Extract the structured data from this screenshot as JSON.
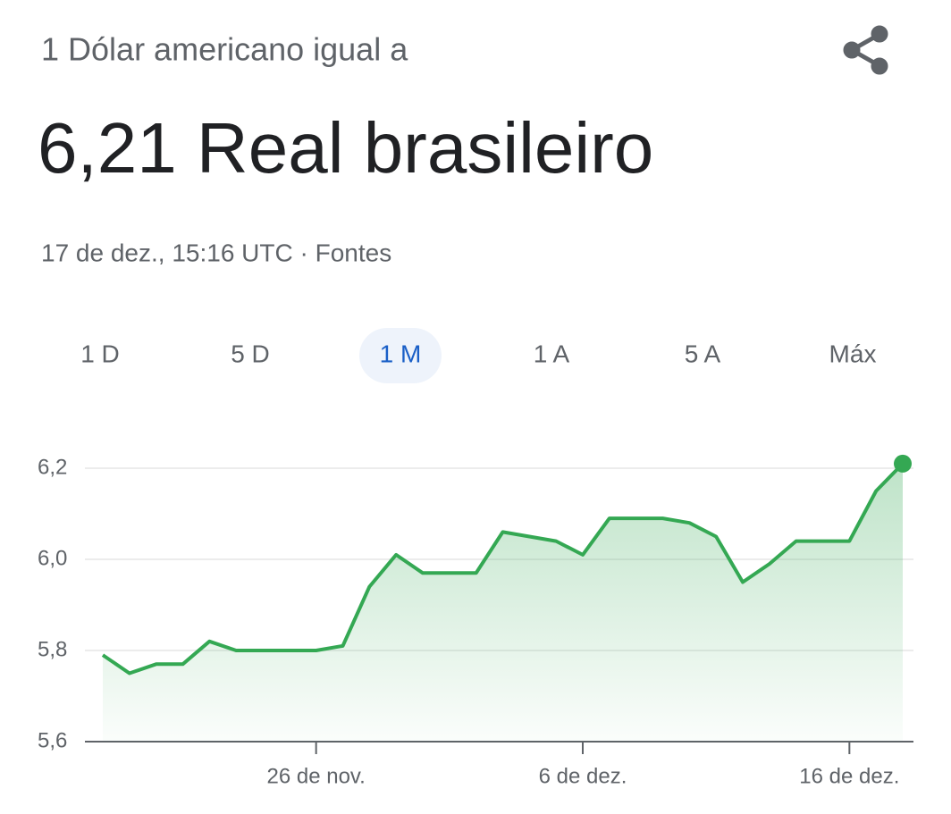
{
  "header": {
    "subtitle": "1 Dólar americano igual a",
    "value": "6,21 Real brasileiro",
    "timestamp": "17 de dez., 15:16 UTC · Fontes"
  },
  "tabs": [
    "1 D",
    "5 D",
    "1 M",
    "1 A",
    "5 A",
    "Máx"
  ],
  "active_tab": 2,
  "chart_data": {
    "type": "line",
    "categories": [
      null,
      null,
      null,
      null,
      null,
      null,
      null,
      null,
      "26 de nov.",
      null,
      null,
      null,
      null,
      null,
      null,
      null,
      null,
      null,
      "6 de dez.",
      null,
      null,
      null,
      null,
      null,
      null,
      null,
      null,
      null,
      "16 de dez.",
      null,
      null
    ],
    "series": [
      {
        "color": "#34a853",
        "values": [
          5.79,
          5.75,
          5.77,
          5.77,
          5.82,
          5.8,
          5.8,
          5.8,
          5.8,
          5.81,
          5.94,
          6.01,
          5.97,
          5.97,
          5.97,
          6.06,
          6.05,
          6.04,
          6.01,
          6.09,
          6.09,
          6.09,
          6.08,
          6.05,
          5.95,
          5.99,
          6.04,
          6.04,
          6.04,
          6.15,
          6.21
        ]
      }
    ],
    "ylim": [
      5.6,
      6.2
    ],
    "yticks": [
      {
        "value": 5.6,
        "label": "5,6"
      },
      {
        "value": 5.8,
        "label": "5,8"
      },
      {
        "value": 6.0,
        "label": "6,0"
      },
      {
        "value": 6.2,
        "label": "6,2"
      }
    ],
    "grid": true
  }
}
